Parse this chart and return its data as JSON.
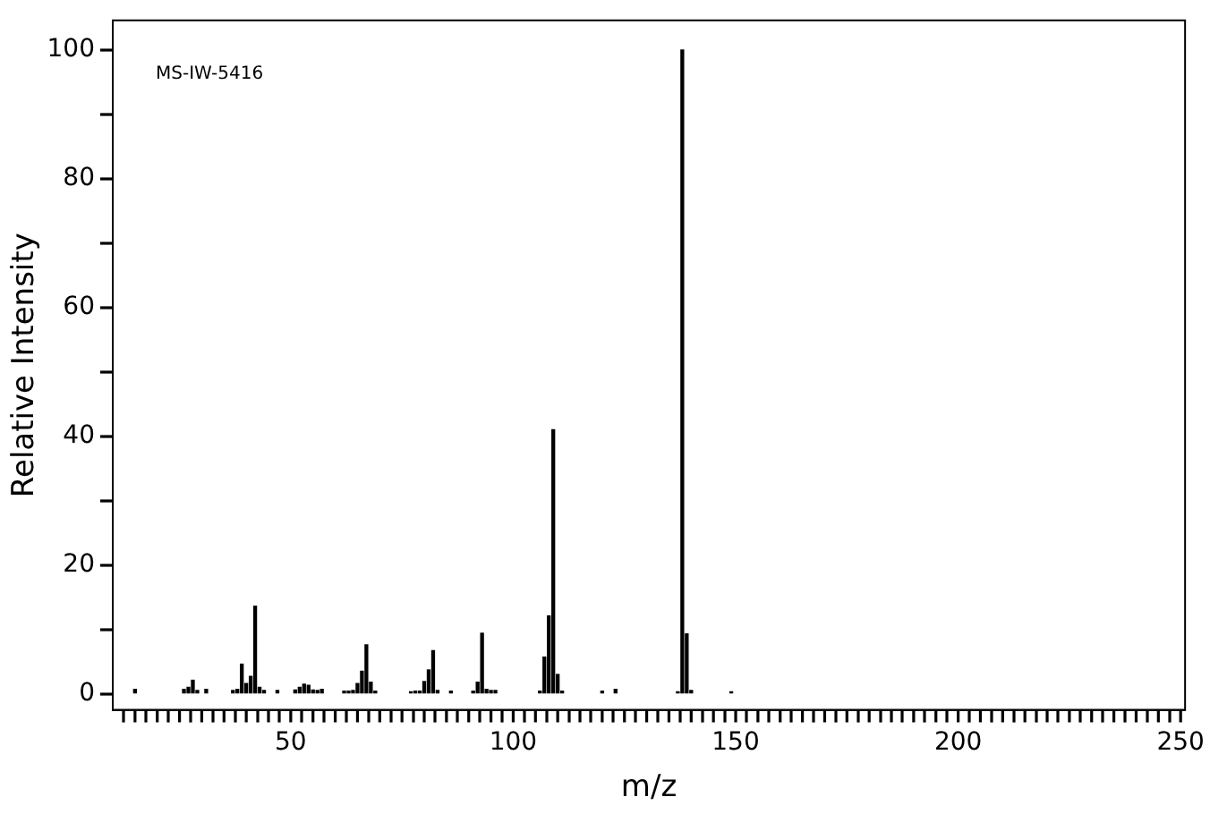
{
  "chart_data": {
    "type": "bar",
    "xlabel": "m/z",
    "ylabel": "Relative Intensity",
    "annotations": [
      "MS-IW-5416"
    ],
    "x": [
      15,
      26,
      27,
      28,
      29,
      31,
      37,
      38,
      39,
      40,
      41,
      42,
      43,
      44,
      47,
      51,
      52,
      53,
      54,
      55,
      56,
      57,
      62,
      63,
      64,
      65,
      66,
      67,
      68,
      69,
      77,
      78,
      79,
      80,
      81,
      82,
      83,
      86,
      91,
      92,
      93,
      94,
      95,
      96,
      106,
      107,
      108,
      109,
      110,
      111,
      120,
      123,
      137,
      138,
      139,
      140,
      149
    ],
    "values": [
      0.7,
      0.7,
      1.0,
      2.1,
      0.5,
      0.7,
      0.5,
      0.7,
      4.6,
      1.6,
      2.7,
      13.6,
      1.0,
      0.5,
      0.5,
      0.6,
      1.0,
      1.5,
      1.3,
      0.6,
      0.5,
      0.7,
      0.4,
      0.4,
      0.5,
      1.6,
      3.5,
      7.6,
      1.8,
      0.4,
      0.3,
      0.4,
      0.4,
      1.9,
      3.7,
      6.7,
      0.5,
      0.4,
      0.4,
      1.8,
      9.4,
      0.7,
      0.5,
      0.5,
      0.4,
      5.7,
      12.1,
      41,
      3.0,
      0.4,
      0.4,
      0.7,
      0.3,
      100,
      9.3,
      0.5,
      0.3
    ],
    "color": "#000000",
    "xlim": [
      10,
      251
    ],
    "xticks": [
      {
        "value": 15,
        "label": null
      },
      {
        "value": 20,
        "label": null
      },
      {
        "value": 25,
        "label": null
      },
      {
        "value": 30,
        "label": null
      },
      {
        "value": 35,
        "label": null
      },
      {
        "value": 40,
        "label": null
      },
      {
        "value": 45,
        "label": null
      },
      50,
      {
        "value": 55,
        "label": null
      },
      {
        "value": 60,
        "label": null
      },
      {
        "value": 65,
        "label": null
      },
      {
        "value": 70,
        "label": null
      },
      {
        "value": 75,
        "label": null
      },
      {
        "value": 80,
        "label": null
      },
      {
        "value": 85,
        "label": null
      },
      {
        "value": 90,
        "label": null
      },
      {
        "value": 95,
        "label": null
      },
      100,
      {
        "value": 105,
        "label": null
      },
      {
        "value": 110,
        "label": null
      },
      {
        "value": 115,
        "label": null
      },
      {
        "value": 120,
        "label": null
      },
      {
        "value": 125,
        "label": null
      },
      {
        "value": 130,
        "label": null
      },
      {
        "value": 135,
        "label": null
      },
      {
        "value": 140,
        "label": null
      },
      {
        "value": 145,
        "label": null
      },
      150,
      {
        "value": 155,
        "label": null
      },
      {
        "value": 160,
        "label": null
      },
      {
        "value": 165,
        "label": null
      },
      {
        "value": 170,
        "label": null
      },
      {
        "value": 175,
        "label": null
      },
      {
        "value": 180,
        "label": null
      },
      {
        "value": 185,
        "label": null
      },
      {
        "value": 190,
        "label": null
      },
      {
        "value": 195,
        "label": null
      },
      200,
      {
        "value": 205,
        "label": null
      },
      {
        "value": 210,
        "label": null
      },
      {
        "value": 215,
        "label": null
      },
      {
        "value": 220,
        "label": null
      },
      {
        "value": 225,
        "label": null
      },
      {
        "value": 230,
        "label": null
      },
      {
        "value": 235,
        "label": null
      },
      {
        "value": 240,
        "label": null
      },
      {
        "value": 245,
        "label": null
      },
      250
    ],
    "ylim": [
      -2.5,
      104.6
    ],
    "yticks": [
      0,
      {
        "value": 10,
        "label": null
      },
      20,
      {
        "value": 30,
        "label": null
      },
      40,
      {
        "value": 50,
        "label": null
      },
      60,
      {
        "value": 70,
        "label": null
      },
      80,
      {
        "value": 90,
        "label": null
      },
      100
    ],
    "grid": false,
    "legend": false
  }
}
